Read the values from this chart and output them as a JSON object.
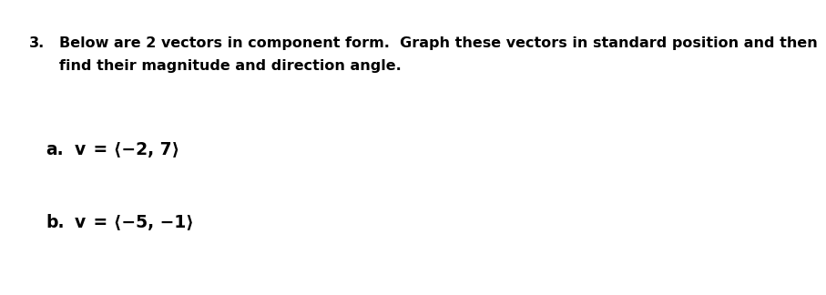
{
  "background_color": "#ffffff",
  "text_color": "#000000",
  "number": "3.",
  "main_line1": "Below are 2 vectors in component form.  Graph these vectors in standard position and then",
  "main_line2": "find their magnitude and direction angle.",
  "item_a_label": "a.",
  "item_a_v": "v",
  "item_a_eq": " = ⟨−2, 7⟩",
  "item_b_label": "b.",
  "item_b_v": "v",
  "item_b_eq": " = ⟨−5, −1⟩",
  "font_main": "DejaVu Sans",
  "font_size_main": 11.5,
  "font_size_items": 13.5
}
